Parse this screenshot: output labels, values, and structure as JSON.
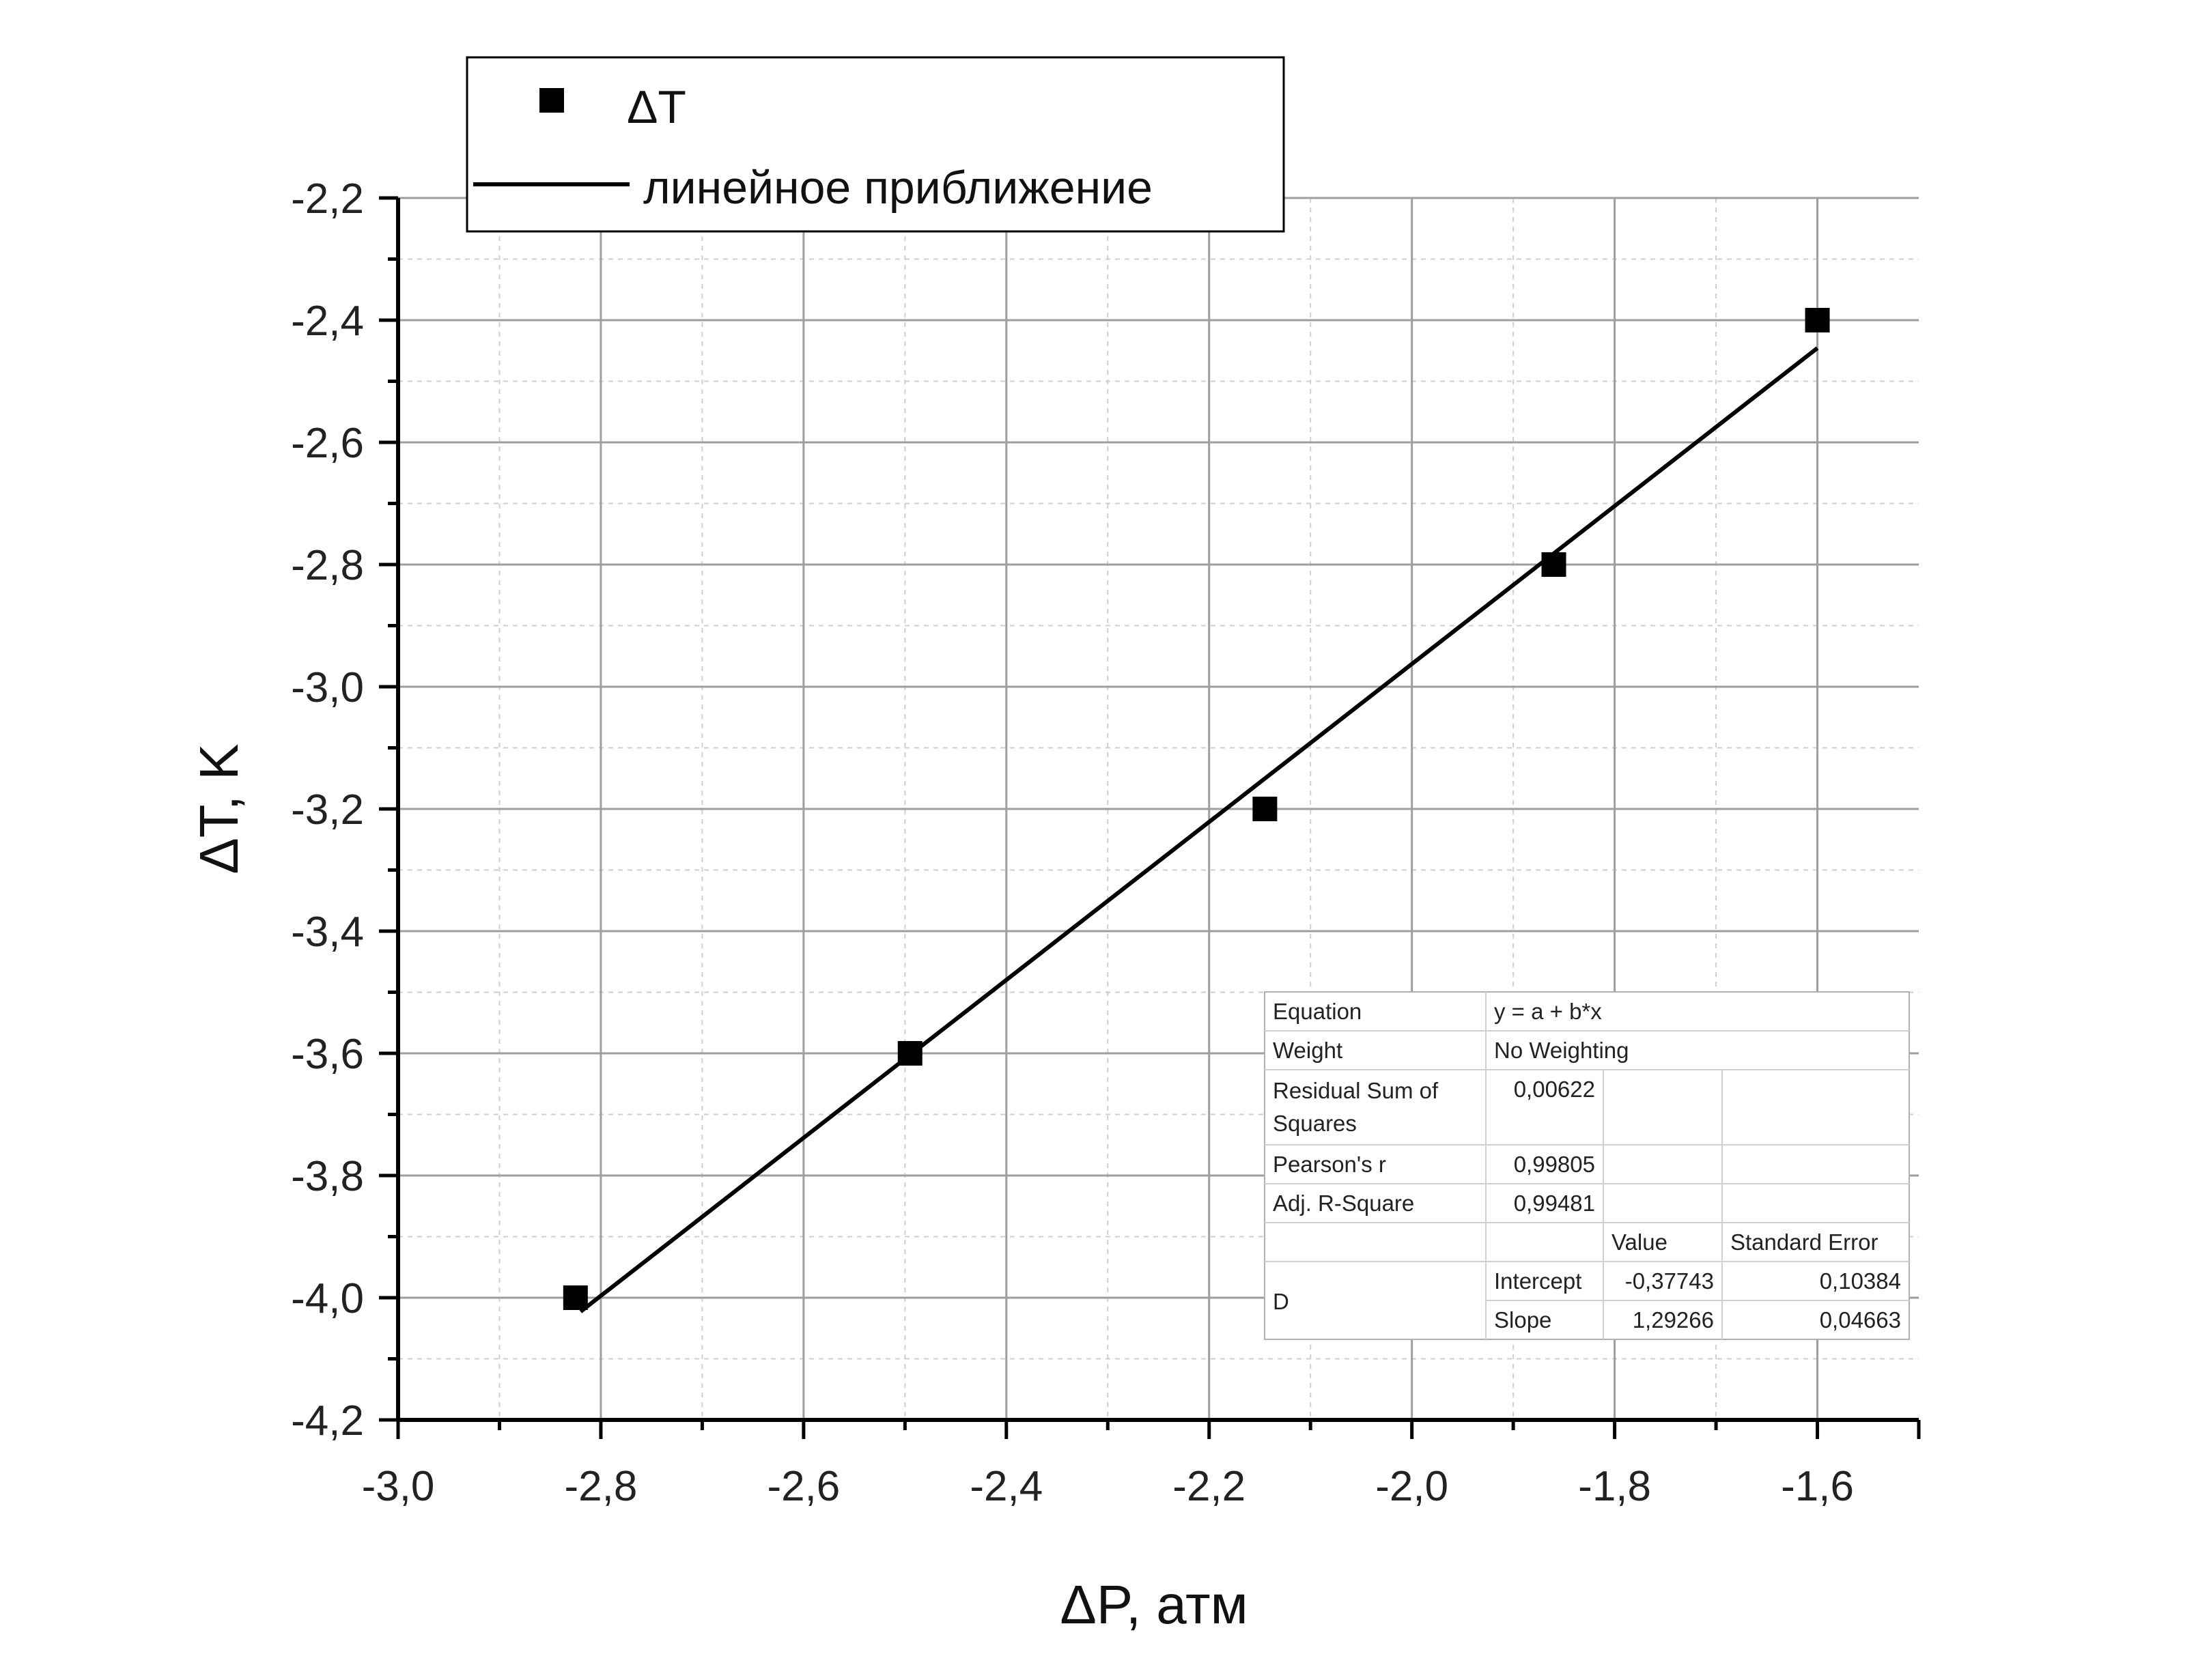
{
  "chart_data": {
    "type": "scatter",
    "xlabel": "ΔP, атм",
    "ylabel": "ΔT, K",
    "xlim": [
      -3.0,
      -1.5
    ],
    "ylim": [
      -4.2,
      -2.2
    ],
    "x_ticks": [
      -3.0,
      -2.8,
      -2.6,
      -2.4,
      -2.2,
      -2.0,
      -1.8,
      -1.6
    ],
    "x_tick_labels": [
      "-3,0",
      "-2,8",
      "-2,6",
      "-2,4",
      "-2,2",
      "-2,0",
      "-1,8",
      "-1,6"
    ],
    "y_ticks": [
      -2.2,
      -2.4,
      -2.6,
      -2.8,
      -3.0,
      -3.2,
      -3.4,
      -3.6,
      -3.8,
      -4.0,
      -4.2
    ],
    "y_tick_labels": [
      "-2,2",
      "-2,4",
      "-2,6",
      "-2,8",
      "-3,0",
      "-3,2",
      "-3,4",
      "-3,6",
      "-3,8",
      "-4,0",
      "-4,2"
    ],
    "grid": true,
    "legend_position": "top-left",
    "series": [
      {
        "name": "ΔT",
        "kind": "scatter",
        "marker": "square",
        "color": "#000000",
        "points": [
          {
            "x": -2.825,
            "y": -4.0
          },
          {
            "x": -2.495,
            "y": -3.6
          },
          {
            "x": -2.145,
            "y": -3.2
          },
          {
            "x": -1.86,
            "y": -2.8
          },
          {
            "x": -1.6,
            "y": -2.4
          }
        ]
      },
      {
        "name": "линейное приближение",
        "kind": "line",
        "color": "#000000",
        "intercept": -0.37743,
        "slope": 1.29266,
        "x_range": [
          -2.82,
          -1.6
        ]
      }
    ],
    "stats_table": {
      "rows": [
        [
          "Equation",
          "y = a + b*x",
          "",
          ""
        ],
        [
          "Weight",
          "No Weighting",
          "",
          ""
        ],
        [
          "Residual Sum of Squares",
          "0,00622",
          "",
          ""
        ],
        [
          "Pearson's r",
          "0,99805",
          "",
          ""
        ],
        [
          "Adj. R-Square",
          "0,99481",
          "",
          ""
        ],
        [
          "",
          "",
          "Value",
          "Standard Error"
        ],
        [
          "D",
          "Intercept",
          "-0,37743",
          "0,10384"
        ],
        [
          "",
          "Slope",
          "1,29266",
          "0,04663"
        ]
      ]
    }
  }
}
